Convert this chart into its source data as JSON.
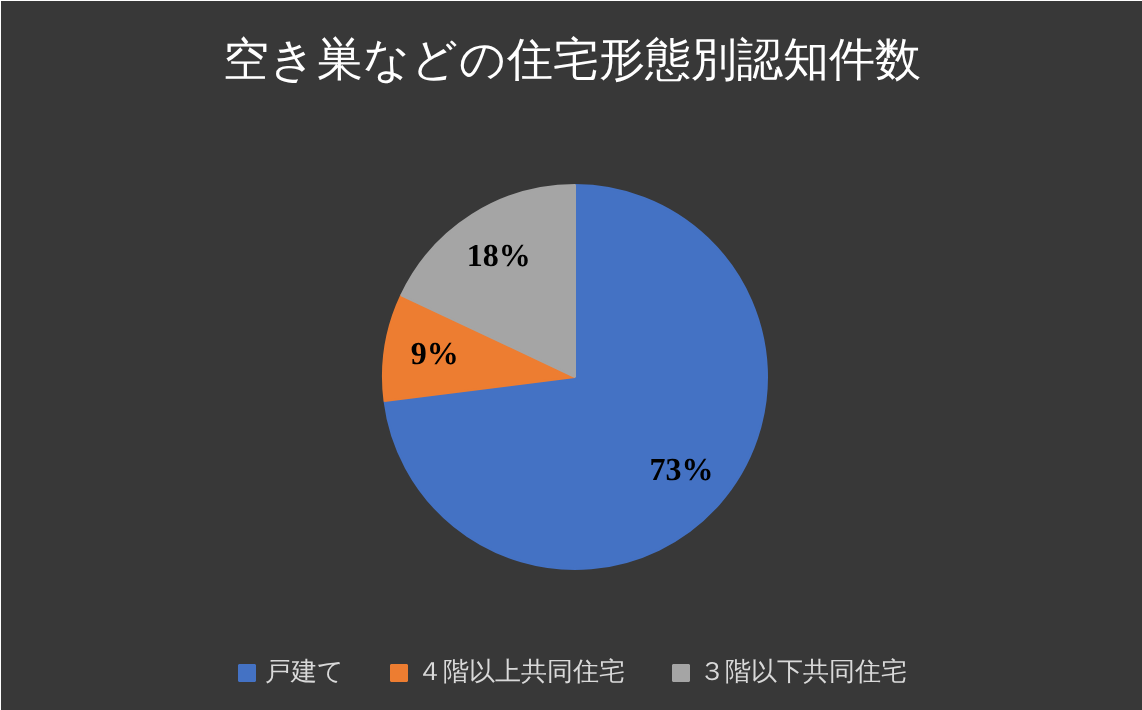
{
  "chart_data": {
    "type": "pie",
    "title": "空き巣などの住宅形態別認知件数",
    "categories": [
      "戸建て",
      "４階以上共同住宅",
      "３階以下共同住宅"
    ],
    "values": [
      73,
      9,
      18
    ],
    "colors": [
      "#4472c4",
      "#ed7d31",
      "#a5a5a5"
    ],
    "value_labels": [
      "73%",
      "9%",
      "18%"
    ],
    "legend": "bottom"
  }
}
